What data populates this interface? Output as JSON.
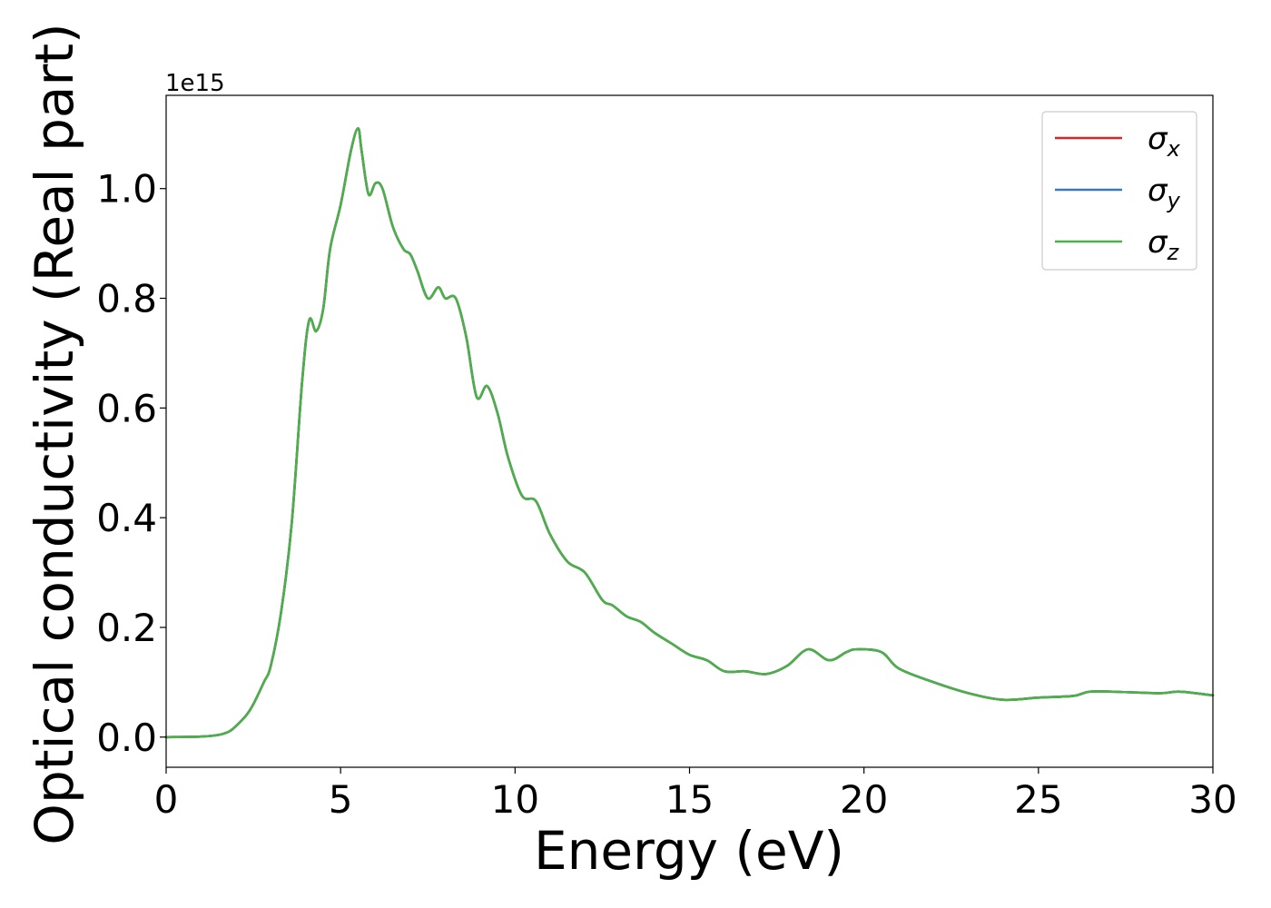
{
  "chart_data": {
    "type": "line",
    "title": "",
    "xlabel": "Energy (eV)",
    "ylabel": "Optical conductivity (Real part)",
    "offset_text": "1e15",
    "xlim": [
      0,
      30
    ],
    "ylim": [
      -0.055,
      1.17
    ],
    "x_ticks": [
      0,
      5,
      10,
      15,
      20,
      25,
      30
    ],
    "x_tick_labels": [
      "0",
      "5",
      "10",
      "15",
      "20",
      "25",
      "30"
    ],
    "y_ticks": [
      0.0,
      0.2,
      0.4,
      0.6,
      0.8,
      1.0
    ],
    "y_tick_labels": [
      "0.0",
      "0.2",
      "0.4",
      "0.6",
      "0.8",
      "1.0"
    ],
    "grid": false,
    "legend_position": "top-right",
    "x": [
      0,
      1,
      1.5,
      1.8,
      2.0,
      2.3,
      2.5,
      2.8,
      3.0,
      3.3,
      3.6,
      3.9,
      4.1,
      4.3,
      4.5,
      4.7,
      5.0,
      5.3,
      5.5,
      5.6,
      5.8,
      6.0,
      6.2,
      6.5,
      6.8,
      7.0,
      7.2,
      7.5,
      7.8,
      8.0,
      8.3,
      8.6,
      8.9,
      9.2,
      9.5,
      9.8,
      10.2,
      10.6,
      11.0,
      11.5,
      12.0,
      12.5,
      12.8,
      13.2,
      13.6,
      14.0,
      14.5,
      15.0,
      15.5,
      16.0,
      16.6,
      17.2,
      17.8,
      18.4,
      19.0,
      19.5,
      19.8,
      20.5,
      21.0,
      22.0,
      23.0,
      24.0,
      25.0,
      26.0,
      26.5,
      27.5,
      28.5,
      29.0,
      29.5,
      30.0
    ],
    "series": [
      {
        "name": "σx",
        "color": "#d62728",
        "values": [
          0,
          0.001,
          0.004,
          0.01,
          0.02,
          0.04,
          0.06,
          0.1,
          0.13,
          0.23,
          0.39,
          0.65,
          0.76,
          0.74,
          0.78,
          0.89,
          0.97,
          1.07,
          1.11,
          1.07,
          0.99,
          1.01,
          1.0,
          0.93,
          0.89,
          0.88,
          0.85,
          0.8,
          0.82,
          0.8,
          0.8,
          0.73,
          0.62,
          0.64,
          0.59,
          0.51,
          0.44,
          0.43,
          0.37,
          0.32,
          0.3,
          0.25,
          0.24,
          0.22,
          0.21,
          0.19,
          0.17,
          0.15,
          0.14,
          0.12,
          0.12,
          0.115,
          0.13,
          0.16,
          0.14,
          0.155,
          0.16,
          0.155,
          0.125,
          0.1,
          0.08,
          0.068,
          0.072,
          0.075,
          0.083,
          0.082,
          0.08,
          0.083,
          0.08,
          0.076
        ]
      },
      {
        "name": "σy",
        "color": "#3b7ab8",
        "values": [
          0,
          0.001,
          0.004,
          0.01,
          0.02,
          0.04,
          0.06,
          0.1,
          0.13,
          0.23,
          0.39,
          0.65,
          0.76,
          0.74,
          0.78,
          0.89,
          0.97,
          1.07,
          1.11,
          1.07,
          0.99,
          1.01,
          1.0,
          0.93,
          0.89,
          0.88,
          0.85,
          0.8,
          0.82,
          0.8,
          0.8,
          0.73,
          0.62,
          0.64,
          0.59,
          0.51,
          0.44,
          0.43,
          0.37,
          0.32,
          0.3,
          0.25,
          0.24,
          0.22,
          0.21,
          0.19,
          0.17,
          0.15,
          0.14,
          0.12,
          0.12,
          0.115,
          0.13,
          0.16,
          0.14,
          0.155,
          0.16,
          0.155,
          0.125,
          0.1,
          0.08,
          0.068,
          0.072,
          0.075,
          0.083,
          0.082,
          0.08,
          0.083,
          0.08,
          0.076
        ]
      },
      {
        "name": "σz",
        "color": "#4daf4a",
        "values": [
          0,
          0.001,
          0.004,
          0.01,
          0.02,
          0.04,
          0.06,
          0.1,
          0.13,
          0.23,
          0.39,
          0.65,
          0.76,
          0.74,
          0.78,
          0.89,
          0.97,
          1.07,
          1.11,
          1.07,
          0.99,
          1.01,
          1.0,
          0.93,
          0.89,
          0.88,
          0.85,
          0.8,
          0.82,
          0.8,
          0.8,
          0.73,
          0.62,
          0.64,
          0.59,
          0.51,
          0.44,
          0.43,
          0.37,
          0.32,
          0.3,
          0.25,
          0.24,
          0.22,
          0.21,
          0.19,
          0.17,
          0.15,
          0.14,
          0.12,
          0.12,
          0.115,
          0.13,
          0.16,
          0.14,
          0.155,
          0.16,
          0.155,
          0.125,
          0.1,
          0.08,
          0.068,
          0.072,
          0.075,
          0.083,
          0.082,
          0.08,
          0.083,
          0.08,
          0.076
        ]
      }
    ]
  }
}
